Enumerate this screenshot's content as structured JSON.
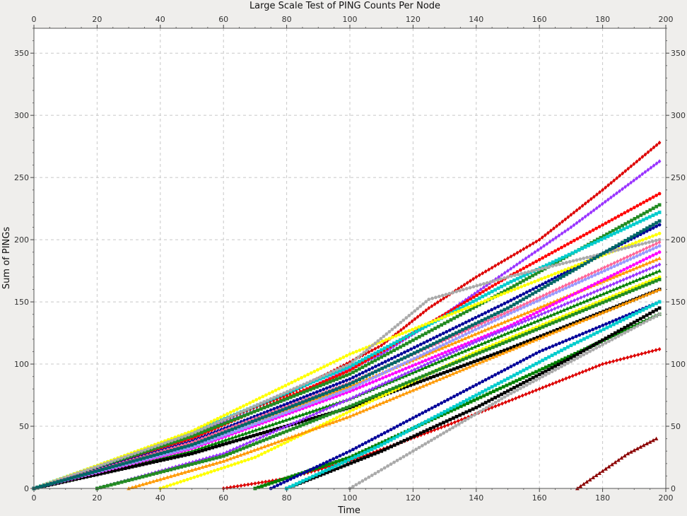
{
  "chart_data": {
    "type": "line",
    "title": "Large Scale Test of PING Counts Per Node",
    "xlabel": "Time",
    "ylabel": "Sum of PINGs",
    "xlim": [
      0,
      200
    ],
    "ylim": [
      0,
      370
    ],
    "x_ticks": [
      0,
      20,
      40,
      60,
      80,
      100,
      120,
      140,
      160,
      180,
      200
    ],
    "y_ticks": [
      0,
      50,
      100,
      150,
      200,
      250,
      300,
      350
    ],
    "grid": true,
    "series": [
      {
        "color": "#dd0000",
        "marker": "diamond",
        "x": [
          0,
          40,
          80,
          110,
          125,
          140,
          160,
          180,
          198
        ],
        "y": [
          0,
          35,
          75,
          115,
          145,
          170,
          200,
          240,
          278
        ]
      },
      {
        "color": "#9933ff",
        "marker": "diamond",
        "x": [
          0,
          40,
          80,
          110,
          130,
          150,
          170,
          198
        ],
        "y": [
          0,
          34,
          72,
          108,
          140,
          175,
          210,
          263
        ]
      },
      {
        "color": "#ff0000",
        "marker": "circle",
        "x": [
          0,
          50,
          100,
          150,
          198
        ],
        "y": [
          0,
          40,
          95,
          170,
          237
        ]
      },
      {
        "color": "#228b22",
        "marker": "square",
        "x": [
          0,
          50,
          100,
          150,
          198
        ],
        "y": [
          0,
          42,
          92,
          160,
          228
        ]
      },
      {
        "color": "#00cccc",
        "marker": "square",
        "x": [
          0,
          50,
          100,
          150,
          198
        ],
        "y": [
          0,
          45,
          98,
          165,
          222
        ]
      },
      {
        "color": "#000099",
        "marker": "circle",
        "x": [
          0,
          50,
          100,
          150,
          198
        ],
        "y": [
          0,
          38,
          88,
          150,
          212
        ]
      },
      {
        "color": "#ffff00",
        "marker": "circle",
        "x": [
          0,
          50,
          100,
          150,
          198
        ],
        "y": [
          0,
          46,
          108,
          158,
          205
        ]
      },
      {
        "color": "#ff9900",
        "marker": "triangle",
        "x": [
          0,
          50,
          100,
          150,
          198
        ],
        "y": [
          0,
          36,
          82,
          135,
          185
        ]
      },
      {
        "color": "#aaaaaa",
        "marker": "circle",
        "x": [
          0,
          50,
          100,
          125,
          150,
          198
        ],
        "y": [
          0,
          44,
          100,
          152,
          170,
          200
        ]
      },
      {
        "color": "#008000",
        "marker": "triangle",
        "x": [
          0,
          50,
          100,
          150,
          198
        ],
        "y": [
          0,
          30,
          72,
          125,
          175
        ]
      },
      {
        "color": "#000000",
        "marker": "square",
        "x": [
          0,
          50,
          100,
          150,
          198
        ],
        "y": [
          0,
          28,
          65,
          112,
          160
        ]
      },
      {
        "color": "#ff00ff",
        "marker": "circle",
        "x": [
          0,
          50,
          100,
          150,
          198
        ],
        "y": [
          0,
          32,
          78,
          130,
          190
        ]
      },
      {
        "color": "#9999ff",
        "marker": "circle",
        "x": [
          0,
          50,
          100,
          150,
          198
        ],
        "y": [
          0,
          33,
          80,
          140,
          195
        ]
      },
      {
        "color": "#ff6699",
        "marker": "diamond",
        "x": [
          0,
          50,
          100,
          150,
          198
        ],
        "y": [
          0,
          37,
          85,
          142,
          198
        ]
      },
      {
        "color": "#006666",
        "marker": "square",
        "x": [
          0,
          50,
          100,
          150,
          198
        ],
        "y": [
          0,
          35,
          84,
          145,
          215
        ]
      },
      {
        "color": "#dd0000",
        "marker": "diamond",
        "x": [
          60,
          80,
          100,
          130,
          160,
          180,
          198
        ],
        "y": [
          0,
          8,
          22,
          50,
          80,
          100,
          112
        ]
      },
      {
        "color": "#008000",
        "marker": "square",
        "x": [
          70,
          100,
          130,
          160,
          198
        ],
        "y": [
          0,
          25,
          60,
          95,
          140
        ]
      },
      {
        "color": "#000099",
        "marker": "circle",
        "x": [
          75,
          100,
          130,
          160,
          198
        ],
        "y": [
          0,
          30,
          70,
          110,
          150
        ]
      },
      {
        "color": "#aaaaaa",
        "marker": "circle",
        "x": [
          100,
          120,
          150,
          198
        ],
        "y": [
          0,
          30,
          75,
          140
        ]
      },
      {
        "color": "#000000",
        "marker": "square",
        "x": [
          80,
          110,
          140,
          170,
          198
        ],
        "y": [
          0,
          30,
          65,
          105,
          145
        ]
      },
      {
        "color": "#00cccc",
        "marker": "square",
        "x": [
          80,
          110,
          140,
          170,
          198
        ],
        "y": [
          0,
          35,
          75,
          115,
          150
        ]
      },
      {
        "color": "#ffff00",
        "marker": "circle",
        "x": [
          40,
          70,
          100,
          140,
          198
        ],
        "y": [
          0,
          25,
          62,
          110,
          170
        ]
      },
      {
        "color": "#ff9900",
        "marker": "triangle",
        "x": [
          30,
          60,
          100,
          140,
          198
        ],
        "y": [
          0,
          22,
          58,
          100,
          160
        ]
      },
      {
        "color": "#9933ff",
        "marker": "diamond",
        "x": [
          20,
          60,
          100,
          140,
          198
        ],
        "y": [
          0,
          28,
          72,
          118,
          180
        ]
      },
      {
        "color": "#228b22",
        "marker": "square",
        "x": [
          20,
          60,
          100,
          140,
          198
        ],
        "y": [
          0,
          26,
          66,
          108,
          168
        ]
      },
      {
        "color": "#8b0000",
        "marker": "triangle",
        "x": [
          172,
          180,
          188,
          197
        ],
        "y": [
          0,
          14,
          28,
          40
        ]
      }
    ]
  }
}
